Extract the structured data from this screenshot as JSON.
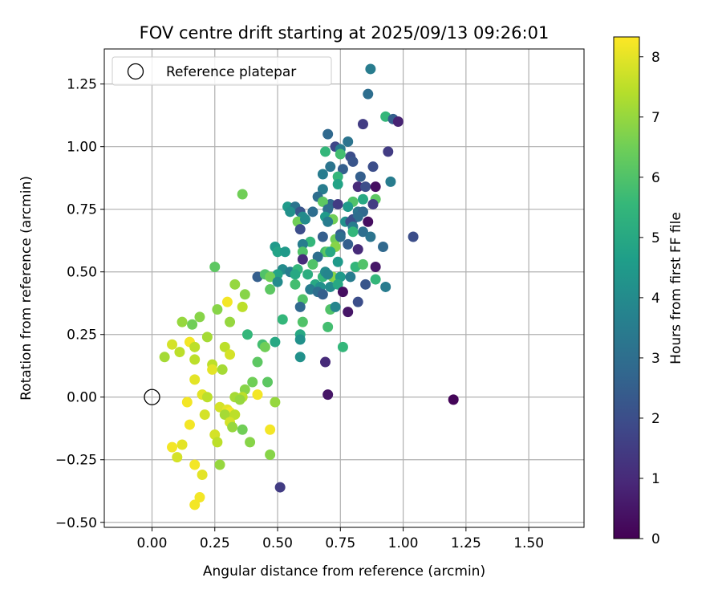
{
  "chart_data": {
    "type": "scatter",
    "title": "FOV centre drift starting at 2025/09/13 09:26:01",
    "xlabel": "Angular distance from reference (arcmin)",
    "ylabel": "Rotation from reference (arcmin)",
    "xlim": [
      -0.19,
      1.72
    ],
    "ylim": [
      -0.52,
      1.39
    ],
    "xticks": [
      "0.00",
      "0.25",
      "0.50",
      "0.75",
      "1.00",
      "1.25",
      "1.50"
    ],
    "yticks": [
      "−0.50",
      "−0.25",
      "0.00",
      "0.25",
      "0.50",
      "0.75",
      "1.00",
      "1.25"
    ],
    "grid": true,
    "legend": {
      "position": "top-left",
      "entries": [
        "Reference platepar"
      ]
    },
    "reference_point": {
      "x": 0.0,
      "y": 0.0,
      "label": "Reference platepar"
    },
    "colorbar": {
      "label": "Hours from first FF file",
      "range": [
        0,
        8.33
      ],
      "ticks": [
        "0",
        "1",
        "2",
        "3",
        "4",
        "5",
        "6",
        "7",
        "8"
      ],
      "colormap": "viridis",
      "colormap_stops": [
        "#440154",
        "#482878",
        "#3e4989",
        "#31688e",
        "#26828e",
        "#1f9e89",
        "#35b779",
        "#6ece58",
        "#b5de2b",
        "#fde725"
      ]
    },
    "points": [
      [
        0.87,
        1.31,
        3.5
      ],
      [
        0.86,
        1.21,
        3.0
      ],
      [
        0.93,
        1.12,
        5.5
      ],
      [
        0.96,
        1.11,
        2.5
      ],
      [
        0.98,
        1.1,
        0.8
      ],
      [
        0.84,
        1.09,
        1.5
      ],
      [
        0.7,
        1.05,
        2.8
      ],
      [
        0.78,
        1.02,
        3.2
      ],
      [
        0.73,
        1.0,
        1.8
      ],
      [
        0.75,
        0.99,
        3.5
      ],
      [
        0.94,
        0.98,
        1.5
      ],
      [
        0.69,
        0.98,
        5.5
      ],
      [
        0.75,
        0.97,
        5.8
      ],
      [
        0.79,
        0.96,
        2.0
      ],
      [
        0.8,
        0.94,
        2.2
      ],
      [
        0.71,
        0.92,
        3.2
      ],
      [
        0.88,
        0.92,
        2.0
      ],
      [
        0.76,
        0.91,
        2.5
      ],
      [
        0.83,
        0.88,
        2.5
      ],
      [
        0.68,
        0.89,
        3.5
      ],
      [
        0.74,
        0.88,
        5.5
      ],
      [
        0.95,
        0.86,
        3.5
      ],
      [
        0.74,
        0.85,
        4.8
      ],
      [
        0.82,
        0.84,
        1.0
      ],
      [
        0.85,
        0.84,
        2.0
      ],
      [
        0.89,
        0.84,
        0.3
      ],
      [
        0.68,
        0.83,
        3.5
      ],
      [
        0.66,
        0.8,
        3.0
      ],
      [
        0.36,
        0.81,
        6.5
      ],
      [
        0.71,
        0.77,
        2.8
      ],
      [
        0.68,
        0.78,
        6.2
      ],
      [
        0.74,
        0.77,
        1.5
      ],
      [
        0.8,
        0.78,
        6.0
      ],
      [
        0.84,
        0.79,
        5.0
      ],
      [
        0.89,
        0.79,
        6.2
      ],
      [
        0.88,
        0.77,
        1.5
      ],
      [
        0.54,
        0.76,
        4.5
      ],
      [
        0.57,
        0.76,
        3.2
      ],
      [
        0.59,
        0.74,
        2.2
      ],
      [
        0.64,
        0.74,
        3.0
      ],
      [
        0.55,
        0.74,
        4.2
      ],
      [
        0.7,
        0.75,
        3.0
      ],
      [
        0.78,
        0.76,
        4.5
      ],
      [
        0.82,
        0.74,
        3.2
      ],
      [
        0.84,
        0.74,
        2.8
      ],
      [
        0.6,
        0.72,
        4.0
      ],
      [
        0.69,
        0.72,
        4.5
      ],
      [
        0.72,
        0.71,
        6.5
      ],
      [
        0.8,
        0.71,
        2.0
      ],
      [
        0.82,
        0.72,
        3.0
      ],
      [
        0.58,
        0.7,
        6.5
      ],
      [
        0.61,
        0.71,
        4.0
      ],
      [
        0.7,
        0.7,
        3.5
      ],
      [
        0.77,
        0.7,
        4.2
      ],
      [
        0.79,
        0.7,
        2.0
      ],
      [
        0.86,
        0.7,
        0.3
      ],
      [
        0.8,
        0.68,
        3.5
      ],
      [
        0.84,
        0.66,
        3.0
      ],
      [
        0.75,
        0.65,
        2.5
      ],
      [
        0.73,
        0.63,
        6.5
      ],
      [
        0.8,
        0.66,
        5.5
      ],
      [
        0.59,
        0.67,
        2.0
      ],
      [
        0.68,
        0.64,
        2.5
      ],
      [
        0.75,
        0.64,
        3.0
      ],
      [
        0.87,
        0.64,
        3.2
      ],
      [
        1.04,
        0.64,
        2.0
      ],
      [
        0.63,
        0.62,
        5.5
      ],
      [
        0.6,
        0.61,
        3.5
      ],
      [
        0.73,
        0.6,
        6.8
      ],
      [
        0.78,
        0.61,
        2.5
      ],
      [
        0.92,
        0.6,
        2.8
      ],
      [
        0.49,
        0.6,
        4.5
      ],
      [
        0.5,
        0.58,
        4.8
      ],
      [
        0.53,
        0.58,
        4.5
      ],
      [
        0.6,
        0.58,
        6.0
      ],
      [
        0.69,
        0.58,
        5.8
      ],
      [
        0.7,
        0.58,
        6.2
      ],
      [
        0.71,
        0.58,
        5.0
      ],
      [
        0.82,
        0.59,
        1.0
      ],
      [
        0.66,
        0.56,
        3.0
      ],
      [
        0.6,
        0.55,
        1.0
      ],
      [
        0.74,
        0.54,
        4.5
      ],
      [
        0.64,
        0.53,
        6.0
      ],
      [
        0.81,
        0.52,
        5.5
      ],
      [
        0.84,
        0.53,
        6.0
      ],
      [
        0.89,
        0.52,
        0.5
      ],
      [
        0.25,
        0.52,
        6.2
      ],
      [
        0.52,
        0.51,
        4.0
      ],
      [
        0.55,
        0.5,
        3.5
      ],
      [
        0.58,
        0.51,
        5.5
      ],
      [
        0.5,
        0.49,
        4.8
      ],
      [
        0.57,
        0.49,
        5.0
      ],
      [
        0.62,
        0.49,
        5.2
      ],
      [
        0.68,
        0.48,
        5.5
      ],
      [
        0.72,
        0.48,
        6.8
      ],
      [
        0.69,
        0.5,
        4.0
      ],
      [
        0.7,
        0.49,
        3.8
      ],
      [
        0.75,
        0.48,
        4.5
      ],
      [
        0.79,
        0.48,
        3.5
      ],
      [
        0.42,
        0.48,
        2.5
      ],
      [
        0.45,
        0.49,
        6.0
      ],
      [
        0.47,
        0.48,
        6.5
      ],
      [
        0.5,
        0.46,
        4.0
      ],
      [
        0.57,
        0.45,
        5.8
      ],
      [
        0.65,
        0.45,
        5.0
      ],
      [
        0.67,
        0.44,
        4.2
      ],
      [
        0.71,
        0.44,
        4.0
      ],
      [
        0.74,
        0.45,
        5.0
      ],
      [
        0.85,
        0.45,
        2.2
      ],
      [
        0.89,
        0.47,
        5.5
      ],
      [
        0.93,
        0.44,
        3.5
      ],
      [
        0.33,
        0.45,
        7.0
      ],
      [
        0.47,
        0.43,
        6.2
      ],
      [
        0.63,
        0.43,
        3.5
      ],
      [
        0.66,
        0.42,
        3.0
      ],
      [
        0.68,
        0.41,
        2.5
      ],
      [
        0.76,
        0.42,
        0.3
      ],
      [
        0.82,
        0.38,
        2.0
      ],
      [
        0.3,
        0.38,
        8.2
      ],
      [
        0.37,
        0.41,
        6.8
      ],
      [
        0.36,
        0.36,
        7.5
      ],
      [
        0.6,
        0.39,
        6.0
      ],
      [
        0.26,
        0.35,
        6.8
      ],
      [
        0.59,
        0.36,
        2.8
      ],
      [
        0.71,
        0.35,
        6.0
      ],
      [
        0.73,
        0.36,
        3.8
      ],
      [
        0.78,
        0.34,
        0.5
      ],
      [
        0.19,
        0.32,
        6.8
      ],
      [
        0.12,
        0.3,
        7.0
      ],
      [
        0.31,
        0.3,
        7.0
      ],
      [
        0.52,
        0.31,
        5.5
      ],
      [
        0.6,
        0.3,
        6.0
      ],
      [
        0.16,
        0.29,
        6.5
      ],
      [
        0.7,
        0.28,
        5.8
      ],
      [
        0.38,
        0.25,
        5.5
      ],
      [
        0.59,
        0.25,
        5.0
      ],
      [
        0.22,
        0.24,
        7.2
      ],
      [
        0.11,
        0.18,
        7.5
      ],
      [
        0.08,
        0.21,
        7.8
      ],
      [
        0.15,
        0.22,
        8.2
      ],
      [
        0.17,
        0.2,
        7.5
      ],
      [
        0.29,
        0.2,
        7.5
      ],
      [
        0.44,
        0.21,
        5.8
      ],
      [
        0.45,
        0.2,
        6.5
      ],
      [
        0.49,
        0.22,
        5.0
      ],
      [
        0.59,
        0.23,
        4.2
      ],
      [
        0.76,
        0.2,
        5.5
      ],
      [
        0.05,
        0.16,
        7.2
      ],
      [
        0.17,
        0.15,
        7.5
      ],
      [
        0.31,
        0.17,
        7.8
      ],
      [
        0.59,
        0.16,
        4.2
      ],
      [
        0.24,
        0.13,
        7.5
      ],
      [
        0.42,
        0.14,
        6.2
      ],
      [
        0.69,
        0.14,
        1.0
      ],
      [
        0.24,
        0.11,
        8.0
      ],
      [
        0.28,
        0.11,
        7.2
      ],
      [
        0.17,
        0.07,
        8.0
      ],
      [
        0.4,
        0.06,
        6.5
      ],
      [
        0.46,
        0.06,
        6.2
      ],
      [
        0.37,
        0.03,
        6.8
      ],
      [
        0.2,
        0.01,
        8.0
      ],
      [
        0.22,
        0.0,
        7.5
      ],
      [
        0.33,
        0.0,
        7.2
      ],
      [
        0.36,
        0.0,
        7.5
      ],
      [
        0.42,
        0.01,
        8.2
      ],
      [
        0.7,
        0.01,
        0.5
      ],
      [
        0.35,
        -0.01,
        7.0
      ],
      [
        0.49,
        -0.02,
        7.0
      ],
      [
        1.2,
        -0.01,
        0.1
      ],
      [
        0.14,
        -0.02,
        8.2
      ],
      [
        0.27,
        -0.04,
        7.8
      ],
      [
        0.3,
        -0.05,
        8.0
      ],
      [
        0.31,
        -0.06,
        8.2
      ],
      [
        0.21,
        -0.07,
        7.8
      ],
      [
        0.29,
        -0.07,
        7.2
      ],
      [
        0.33,
        -0.07,
        7.5
      ],
      [
        0.31,
        -0.1,
        7.8
      ],
      [
        0.32,
        -0.12,
        7.0
      ],
      [
        0.36,
        -0.13,
        6.5
      ],
      [
        0.15,
        -0.11,
        8.2
      ],
      [
        0.25,
        -0.15,
        7.8
      ],
      [
        0.47,
        -0.13,
        8.2
      ],
      [
        0.39,
        -0.18,
        6.8
      ],
      [
        0.26,
        -0.18,
        7.5
      ],
      [
        0.12,
        -0.19,
        8.0
      ],
      [
        0.08,
        -0.2,
        8.2
      ],
      [
        0.1,
        -0.24,
        7.8
      ],
      [
        0.47,
        -0.23,
        6.8
      ],
      [
        0.17,
        -0.27,
        8.2
      ],
      [
        0.27,
        -0.27,
        7.0
      ],
      [
        0.2,
        -0.31,
        8.0
      ],
      [
        0.51,
        -0.36,
        1.5
      ],
      [
        0.19,
        -0.4,
        8.2
      ],
      [
        0.17,
        -0.43,
        8.2
      ]
    ]
  }
}
